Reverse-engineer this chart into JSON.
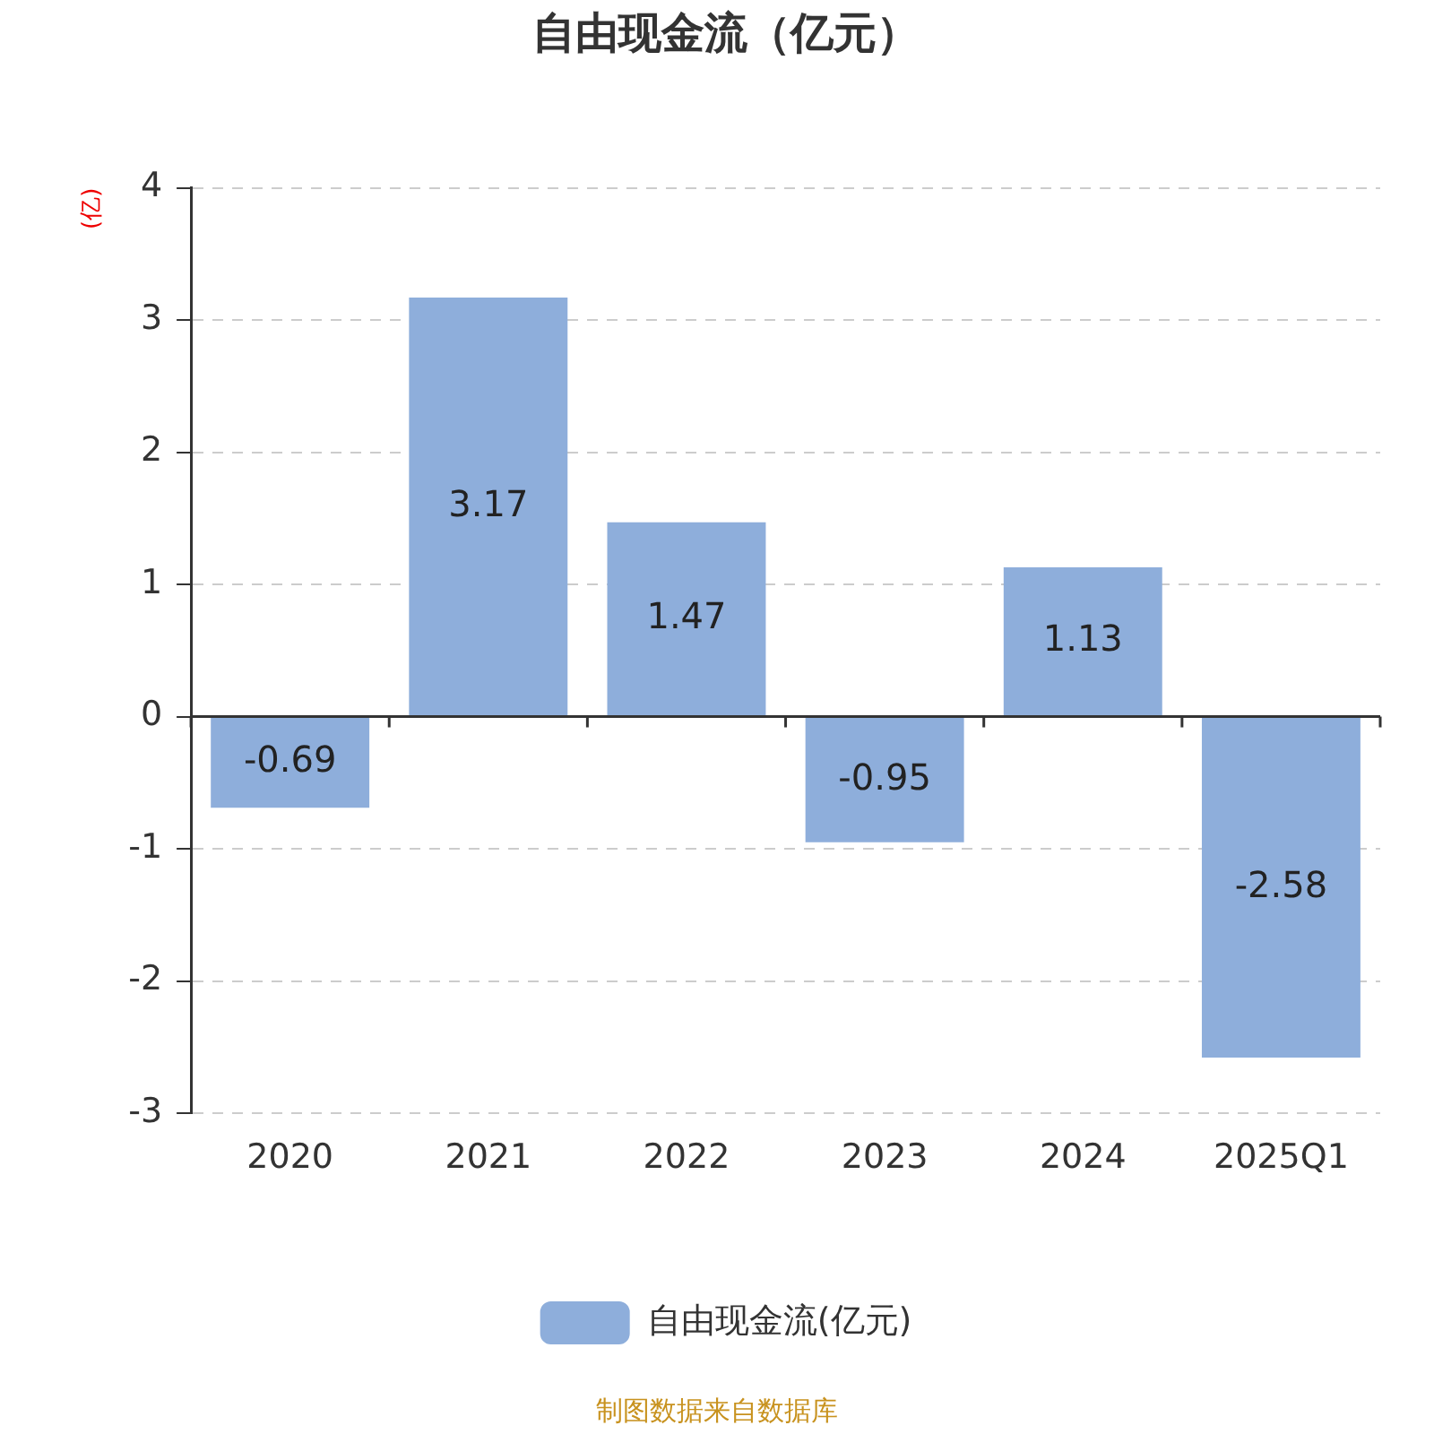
{
  "chart_data": {
    "type": "bar",
    "title": "自由现金流（亿元）",
    "ylabel": "(亿)",
    "categories": [
      "2020",
      "2021",
      "2022",
      "2023",
      "2024",
      "2025Q1"
    ],
    "series": [
      {
        "name": "自由现金流(亿元)",
        "color": "#8eaedb",
        "values": [
          -0.69,
          3.17,
          1.47,
          -0.95,
          1.13,
          -2.58
        ]
      }
    ],
    "ylim": [
      -3,
      4
    ],
    "yticks": [
      -3,
      -2,
      -1,
      0,
      1,
      2,
      3,
      4
    ],
    "grid": "y",
    "legend": "bottom",
    "data_labels": true,
    "annotations": [
      "制图数据来自数据库"
    ]
  }
}
